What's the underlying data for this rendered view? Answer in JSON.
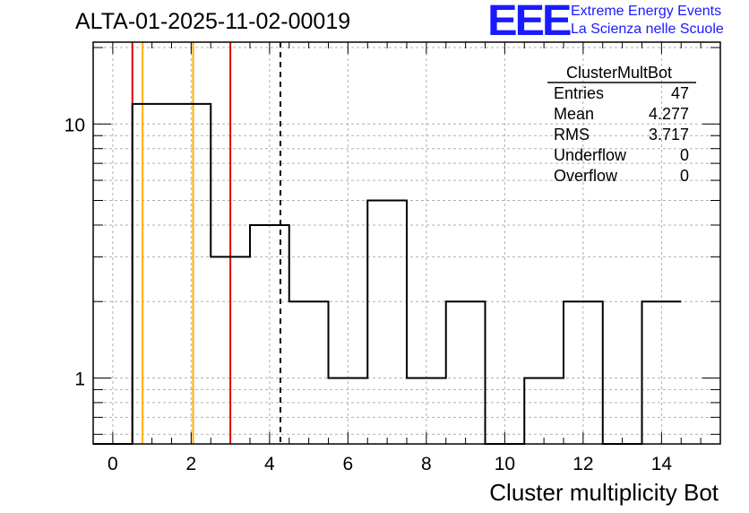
{
  "header": {
    "title": "ALTA-01-2025-11-02-00019",
    "logo_mark": "EEE",
    "logo_line1": "Extreme Energy Events",
    "logo_line2": "La Scienza nelle Scuole"
  },
  "stats": {
    "title": "ClusterMultBot",
    "rows": [
      {
        "label": "Entries",
        "value": "47"
      },
      {
        "label": "Mean",
        "value": "4.277"
      },
      {
        "label": "RMS",
        "value": "3.717"
      },
      {
        "label": "Underflow",
        "value": "0"
      },
      {
        "label": "Overflow",
        "value": "0"
      }
    ]
  },
  "chart_data": {
    "type": "bar",
    "style": "step-histogram",
    "title": "ALTA-01-2025-11-02-00019",
    "xlabel": "Cluster multiplicity Bot",
    "ylabel": "",
    "yscale": "log",
    "xlim": [
      -0.5,
      15.5
    ],
    "ylim": [
      0.55,
      21
    ],
    "x_ticks": [
      0,
      2,
      4,
      6,
      8,
      10,
      12,
      14
    ],
    "y_ticks": [
      1,
      10
    ],
    "bin_width": 1,
    "x": [
      0,
      1,
      2,
      3,
      4,
      5,
      6,
      7,
      8,
      9,
      10,
      11,
      12,
      13,
      14
    ],
    "values": [
      0,
      12,
      12,
      3,
      4,
      2,
      1,
      5,
      1,
      2,
      0,
      1,
      2,
      0,
      2
    ],
    "grid": true,
    "vertical_lines": [
      {
        "x": 0.5,
        "color": "#e00000",
        "style": "solid"
      },
      {
        "x": 0.76,
        "color": "#ffb000",
        "style": "solid"
      },
      {
        "x": 2.05,
        "color": "#ffb000",
        "style": "solid"
      },
      {
        "x": 3.0,
        "color": "#e00000",
        "style": "solid"
      },
      {
        "x": 4.277,
        "color": "#000000",
        "style": "dashed"
      }
    ]
  }
}
